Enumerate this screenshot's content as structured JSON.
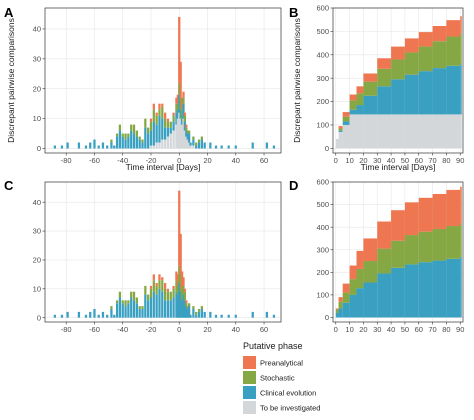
{
  "colors": {
    "preanalytical": "#ee7650",
    "stochastic": "#86a844",
    "clinical": "#3aa0c2",
    "investigated": "#d3d7da",
    "panel_border": "#333333",
    "grid": "#e6e6e6"
  },
  "legend": {
    "title": "Putative phase",
    "items": [
      {
        "label": "Preanalytical",
        "color": "#ee7650"
      },
      {
        "label": "Stochastic",
        "color": "#86a844"
      },
      {
        "label": "Clinical evolution",
        "color": "#3aa0c2"
      },
      {
        "label": "To be investigated",
        "color": "#d3d7da"
      }
    ]
  },
  "chart_data": [
    {
      "panel": "A",
      "type": "bar",
      "stacked": true,
      "xlabel": "Time interval [Days]",
      "ylabel": "Discrepant pairwise comparisons",
      "xlim": [
        -95,
        72
      ],
      "ylim": [
        -1.5,
        47
      ],
      "xticks": [
        -80,
        -60,
        -40,
        -20,
        0,
        20,
        40,
        60
      ],
      "yticks": [
        0,
        10,
        20,
        30,
        40
      ],
      "grid": true,
      "x": [
        -88,
        -83,
        -79,
        -75,
        -71,
        -69,
        -66,
        -63,
        -60,
        -57,
        -54,
        -51,
        -48,
        -46,
        -44,
        -42,
        -40,
        -38,
        -36,
        -34,
        -32,
        -30,
        -28,
        -26,
        -24,
        -22,
        -20,
        -18,
        -16,
        -14,
        -12,
        -10,
        -8,
        -6,
        -4,
        -2,
        -1,
        0,
        1,
        2,
        3,
        4,
        5,
        6,
        7,
        8,
        10,
        12,
        14,
        16,
        18,
        22,
        26,
        30,
        35,
        40,
        52,
        62,
        67
      ],
      "series": [
        {
          "name": "To be investigated",
          "values": [
            0,
            0,
            0,
            0,
            0,
            0,
            0,
            0,
            0,
            0,
            0,
            0,
            0,
            0,
            0,
            0,
            0,
            0,
            0,
            0,
            0,
            0,
            0,
            0,
            0,
            0,
            1,
            1,
            2,
            2,
            3,
            3,
            4,
            5,
            6,
            8,
            10,
            12,
            10,
            8,
            10,
            6,
            4,
            3,
            2,
            1,
            1,
            0,
            0,
            0,
            0,
            0,
            0,
            0,
            0,
            0,
            0,
            0,
            0
          ]
        },
        {
          "name": "Clinical evolution",
          "values": [
            1,
            1,
            2,
            0,
            2,
            0,
            1,
            2,
            3,
            1,
            2,
            1,
            2,
            1,
            4,
            6,
            4,
            3,
            4,
            6,
            5,
            4,
            3,
            2,
            7,
            5,
            5,
            8,
            6,
            9,
            7,
            4,
            3,
            2,
            3,
            4,
            3,
            6,
            3,
            2,
            5,
            3,
            2,
            2,
            3,
            1,
            2,
            1,
            2,
            3,
            2,
            2,
            1,
            1,
            1,
            1,
            2,
            2,
            1
          ]
        },
        {
          "name": "Stochastic",
          "values": [
            0,
            0,
            0,
            0,
            0,
            0,
            0,
            0,
            0,
            0,
            0,
            0,
            1,
            0,
            1,
            2,
            1,
            2,
            1,
            2,
            3,
            2,
            1,
            1,
            3,
            2,
            3,
            4,
            3,
            2,
            4,
            3,
            2,
            2,
            2,
            3,
            2,
            4,
            4,
            3,
            2,
            2,
            1,
            1,
            1,
            0,
            1,
            1,
            1,
            1,
            0,
            0,
            0,
            0,
            0,
            0,
            0,
            0,
            0
          ]
        },
        {
          "name": "Preanalytical",
          "values": [
            0,
            0,
            0,
            0,
            0,
            0,
            0,
            0,
            0,
            0,
            0,
            0,
            0,
            0,
            0,
            0,
            0,
            0,
            0,
            0,
            0,
            0,
            0,
            0,
            0,
            0,
            1,
            2,
            1,
            2,
            1,
            2,
            1,
            0,
            1,
            2,
            3,
            22,
            12,
            4,
            2,
            1,
            1,
            0,
            0,
            0,
            0,
            0,
            0,
            0,
            0,
            0,
            0,
            0,
            0,
            0,
            0,
            0,
            0
          ]
        }
      ]
    },
    {
      "panel": "B",
      "type": "bar",
      "stacked": true,
      "cumulative": true,
      "xlabel": "Time interval [Days]",
      "ylabel": "Discrepant pairwise comparisons",
      "xlim": [
        -2,
        92
      ],
      "ylim": [
        -20,
        600
      ],
      "xticks": [
        0,
        10,
        20,
        30,
        40,
        50,
        60,
        70,
        80,
        90
      ],
      "yticks": [
        0,
        100,
        200,
        300,
        400,
        500,
        600
      ],
      "grid": true,
      "x": [
        0,
        2,
        5,
        10,
        15,
        20,
        30,
        40,
        50,
        60,
        70,
        80,
        90
      ],
      "series": [
        {
          "name": "To be investigated",
          "values": [
            40,
            70,
            100,
            145,
            145,
            145,
            145,
            145,
            145,
            145,
            145,
            145,
            145
          ]
        },
        {
          "name": "Clinical evolution",
          "values": [
            0,
            5,
            15,
            20,
            40,
            80,
            120,
            150,
            170,
            185,
            198,
            208,
            215
          ]
        },
        {
          "name": "Stochastic",
          "values": [
            0,
            10,
            20,
            40,
            50,
            60,
            75,
            85,
            95,
            105,
            115,
            125,
            130
          ]
        },
        {
          "name": "Preanalytical",
          "values": [
            0,
            10,
            20,
            25,
            30,
            35,
            45,
            55,
            60,
            62,
            65,
            70,
            75
          ]
        }
      ]
    },
    {
      "panel": "C",
      "type": "bar",
      "stacked": true,
      "xlabel": "",
      "ylabel": "",
      "xlim": [
        -95,
        72
      ],
      "ylim": [
        -1.5,
        47
      ],
      "xticks": [
        -80,
        -60,
        -40,
        -20,
        0,
        20,
        40,
        60
      ],
      "yticks": [
        0,
        10,
        20,
        30,
        40
      ],
      "grid": true,
      "x": [
        -88,
        -83,
        -79,
        -75,
        -71,
        -69,
        -66,
        -63,
        -60,
        -57,
        -54,
        -51,
        -48,
        -46,
        -44,
        -42,
        -40,
        -38,
        -36,
        -34,
        -32,
        -30,
        -28,
        -26,
        -24,
        -22,
        -20,
        -18,
        -16,
        -14,
        -12,
        -10,
        -8,
        -6,
        -4,
        -2,
        -1,
        0,
        1,
        2,
        3,
        4,
        5,
        6,
        7,
        8,
        10,
        12,
        14,
        16,
        18,
        22,
        26,
        30,
        35,
        40,
        52,
        62,
        67
      ],
      "series": [
        {
          "name": "Clinical evolution",
          "values": [
            1,
            1,
            2,
            0,
            2,
            0,
            1,
            2,
            3,
            1,
            2,
            1,
            3,
            1,
            5,
            7,
            5,
            4,
            5,
            7,
            6,
            5,
            3,
            3,
            8,
            6,
            7,
            9,
            8,
            10,
            9,
            6,
            6,
            6,
            7,
            9,
            8,
            12,
            9,
            6,
            8,
            6,
            4,
            3,
            4,
            1,
            3,
            1,
            2,
            3,
            2,
            2,
            1,
            1,
            1,
            1,
            2,
            2,
            1
          ]
        },
        {
          "name": "Stochastic",
          "values": [
            0,
            0,
            0,
            0,
            0,
            0,
            0,
            0,
            0,
            0,
            0,
            0,
            1,
            0,
            1,
            2,
            1,
            2,
            1,
            2,
            3,
            2,
            1,
            1,
            3,
            2,
            3,
            4,
            3,
            3,
            4,
            4,
            3,
            3,
            3,
            4,
            3,
            6,
            6,
            4,
            3,
            3,
            1,
            1,
            1,
            0,
            1,
            1,
            1,
            1,
            0,
            0,
            0,
            0,
            0,
            0,
            0,
            0,
            0
          ]
        },
        {
          "name": "Preanalytical",
          "values": [
            0,
            0,
            0,
            0,
            0,
            0,
            0,
            0,
            0,
            0,
            0,
            0,
            0,
            0,
            0,
            0,
            0,
            0,
            0,
            0,
            0,
            0,
            0,
            0,
            0,
            0,
            1,
            2,
            1,
            2,
            1,
            2,
            1,
            0,
            1,
            3,
            4,
            26,
            14,
            6,
            3,
            1,
            1,
            0,
            0,
            0,
            0,
            0,
            0,
            0,
            0,
            0,
            0,
            0,
            0,
            0,
            0,
            0,
            0
          ]
        }
      ]
    },
    {
      "panel": "D",
      "type": "bar",
      "stacked": true,
      "cumulative": true,
      "xlabel": "",
      "ylabel": "",
      "xlim": [
        -2,
        92
      ],
      "ylim": [
        -20,
        600
      ],
      "xticks": [
        0,
        10,
        20,
        30,
        40,
        50,
        60,
        70,
        80,
        90
      ],
      "yticks": [
        0,
        100,
        200,
        300,
        400,
        500,
        600
      ],
      "grid": true,
      "x": [
        0,
        2,
        5,
        10,
        15,
        20,
        30,
        40,
        50,
        60,
        70,
        80,
        90
      ],
      "series": [
        {
          "name": "Clinical evolution",
          "values": [
            20,
            40,
            65,
            100,
            130,
            155,
            195,
            220,
            235,
            245,
            252,
            260,
            268
          ]
        },
        {
          "name": "Stochastic",
          "values": [
            15,
            30,
            45,
            70,
            85,
            95,
            110,
            120,
            130,
            135,
            140,
            145,
            148
          ]
        },
        {
          "name": "Preanalytical",
          "values": [
            5,
            20,
            40,
            60,
            80,
            100,
            120,
            135,
            145,
            150,
            155,
            160,
            163
          ]
        }
      ]
    }
  ]
}
